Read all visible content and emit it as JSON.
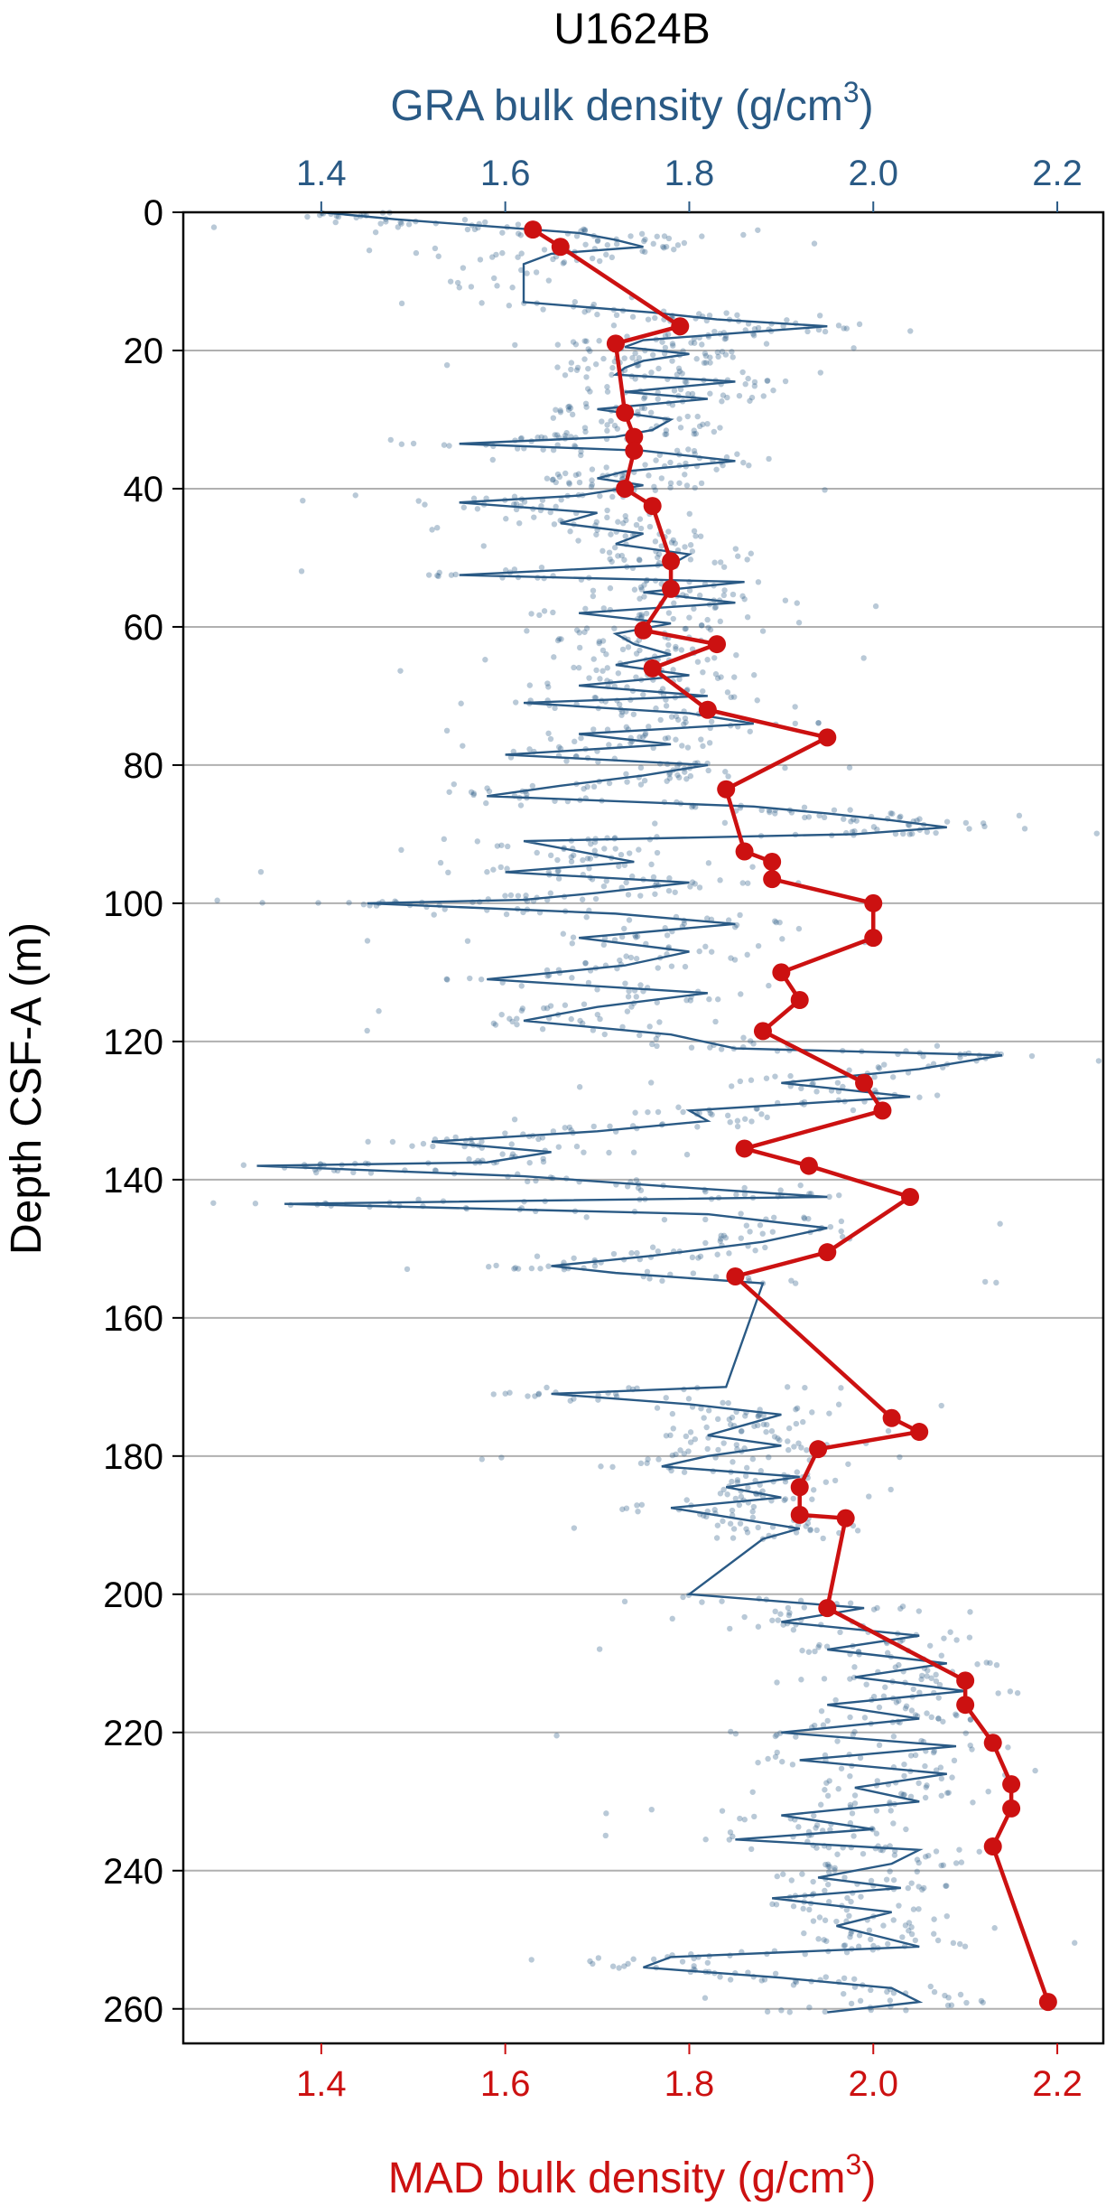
{
  "chart_data": {
    "type": "scatter",
    "title": "U1624B",
    "top_axis": {
      "label": "GRA bulk density (g/cm",
      "label_sup": "3",
      "label_end": ")",
      "range": [
        1.25,
        2.25
      ],
      "ticks": [
        "1.4",
        "1.6",
        "1.8",
        "2.0",
        "2.2"
      ],
      "tick_values": [
        1.4,
        1.6,
        1.8,
        2.0,
        2.2
      ],
      "color": "#2a5a85"
    },
    "bottom_axis": {
      "label": "MAD bulk density (g/cm",
      "label_sup": "3",
      "label_end": ")",
      "range": [
        1.25,
        2.25
      ],
      "ticks": [
        "1.4",
        "1.6",
        "1.8",
        "2.0",
        "2.2"
      ],
      "tick_values": [
        1.4,
        1.6,
        1.8,
        2.0,
        2.2
      ],
      "color": "#cc1111"
    },
    "y_axis": {
      "label": "Depth CSF-A (m)",
      "range": [
        0,
        265
      ],
      "inverted": true,
      "ticks": [
        "0",
        "20",
        "40",
        "60",
        "80",
        "100",
        "120",
        "140",
        "160",
        "180",
        "200",
        "220",
        "240",
        "260"
      ],
      "tick_values": [
        0,
        20,
        40,
        60,
        80,
        100,
        120,
        140,
        160,
        180,
        200,
        220,
        240,
        260
      ],
      "grid": true
    },
    "series": [
      {
        "name": "GRA bulk density",
        "style": "points+line",
        "color": "#2a5a85",
        "points": [
          [
            0.0,
            1.4
          ],
          [
            1.0,
            1.48
          ],
          [
            2.0,
            1.58
          ],
          [
            3.0,
            1.68
          ],
          [
            4.0,
            1.72
          ],
          [
            5.0,
            1.75
          ],
          [
            6.0,
            1.65
          ],
          [
            7.5,
            1.62
          ],
          [
            13.0,
            1.62
          ],
          [
            14.5,
            1.76
          ],
          [
            15.5,
            1.83
          ],
          [
            16.5,
            1.95
          ],
          [
            17.5,
            1.85
          ],
          [
            18.5,
            1.75
          ],
          [
            19.5,
            1.73
          ],
          [
            20.5,
            1.8
          ],
          [
            21.5,
            1.75
          ],
          [
            22.5,
            1.73
          ],
          [
            23.5,
            1.72
          ],
          [
            24.5,
            1.85
          ],
          [
            26.0,
            1.73
          ],
          [
            27.0,
            1.82
          ],
          [
            28.5,
            1.7
          ],
          [
            30.0,
            1.78
          ],
          [
            31.5,
            1.76
          ],
          [
            32.5,
            1.72
          ],
          [
            33.5,
            1.55
          ],
          [
            34.5,
            1.75
          ],
          [
            36.0,
            1.85
          ],
          [
            37.5,
            1.73
          ],
          [
            38.5,
            1.7
          ],
          [
            39.5,
            1.75
          ],
          [
            41.0,
            1.68
          ],
          [
            42.0,
            1.55
          ],
          [
            43.5,
            1.7
          ],
          [
            45.0,
            1.66
          ],
          [
            46.5,
            1.75
          ],
          [
            48.0,
            1.72
          ],
          [
            49.5,
            1.8
          ],
          [
            51.0,
            1.78
          ],
          [
            52.5,
            1.55
          ],
          [
            53.5,
            1.86
          ],
          [
            55.0,
            1.75
          ],
          [
            56.5,
            1.85
          ],
          [
            58.0,
            1.68
          ],
          [
            59.5,
            1.78
          ],
          [
            61.0,
            1.72
          ],
          [
            62.5,
            1.74
          ],
          [
            64.0,
            1.78
          ],
          [
            65.5,
            1.72
          ],
          [
            67.0,
            1.8
          ],
          [
            68.5,
            1.68
          ],
          [
            70.0,
            1.82
          ],
          [
            71.0,
            1.62
          ],
          [
            72.5,
            1.8
          ],
          [
            74.0,
            1.87
          ],
          [
            75.5,
            1.68
          ],
          [
            77.0,
            1.78
          ],
          [
            78.5,
            1.6
          ],
          [
            80.0,
            1.82
          ],
          [
            81.5,
            1.75
          ],
          [
            83.0,
            1.66
          ],
          [
            84.5,
            1.58
          ],
          [
            86.0,
            1.87
          ],
          [
            87.0,
            1.95
          ],
          [
            88.0,
            2.02
          ],
          [
            89.0,
            2.08
          ],
          [
            90.0,
            1.98
          ],
          [
            91.0,
            1.62
          ],
          [
            92.5,
            1.68
          ],
          [
            94.0,
            1.74
          ],
          [
            95.5,
            1.6
          ],
          [
            97.0,
            1.8
          ],
          [
            98.5,
            1.7
          ],
          [
            99.5,
            1.62
          ],
          [
            100.0,
            1.45
          ],
          [
            101.5,
            1.72
          ],
          [
            103.0,
            1.85
          ],
          [
            105.0,
            1.68
          ],
          [
            107.0,
            1.8
          ],
          [
            109.0,
            1.73
          ],
          [
            111.0,
            1.58
          ],
          [
            113.0,
            1.82
          ],
          [
            115.0,
            1.7
          ],
          [
            117.0,
            1.62
          ],
          [
            119.0,
            1.78
          ],
          [
            121.0,
            1.85
          ],
          [
            122.0,
            2.14
          ],
          [
            124.0,
            2.05
          ],
          [
            126.0,
            1.9
          ],
          [
            128.0,
            2.04
          ],
          [
            130.0,
            1.8
          ],
          [
            131.5,
            1.82
          ],
          [
            133.0,
            1.7
          ],
          [
            134.5,
            1.52
          ],
          [
            136.0,
            1.65
          ],
          [
            137.5,
            1.58
          ],
          [
            138.0,
            1.33
          ],
          [
            139.5,
            1.62
          ],
          [
            141.0,
            1.78
          ],
          [
            142.5,
            1.95
          ],
          [
            143.5,
            1.36
          ],
          [
            145.0,
            1.82
          ],
          [
            147.0,
            1.95
          ],
          [
            149.0,
            1.88
          ],
          [
            151.0,
            1.76
          ],
          [
            152.5,
            1.65
          ],
          [
            153.5,
            1.72
          ],
          [
            155.0,
            1.88
          ],
          [
            170.0,
            1.84
          ],
          [
            171.0,
            1.65
          ],
          [
            172.5,
            1.8
          ],
          [
            174.0,
            1.9
          ],
          [
            175.5,
            1.86
          ],
          [
            177.0,
            1.82
          ],
          [
            178.5,
            1.9
          ],
          [
            180.0,
            1.82
          ],
          [
            181.5,
            1.77
          ],
          [
            183.0,
            1.92
          ],
          [
            184.5,
            1.84
          ],
          [
            186.0,
            1.9
          ],
          [
            187.5,
            1.78
          ],
          [
            189.0,
            1.85
          ],
          [
            190.5,
            1.92
          ],
          [
            192.0,
            1.88
          ],
          [
            200.0,
            1.8
          ],
          [
            202.0,
            1.99
          ],
          [
            204.0,
            1.9
          ],
          [
            206.0,
            2.05
          ],
          [
            208.0,
            1.95
          ],
          [
            210.0,
            2.08
          ],
          [
            212.0,
            1.98
          ],
          [
            214.0,
            2.1
          ],
          [
            216.0,
            1.95
          ],
          [
            218.0,
            2.05
          ],
          [
            220.0,
            1.9
          ],
          [
            222.0,
            2.09
          ],
          [
            224.0,
            1.92
          ],
          [
            226.0,
            2.08
          ],
          [
            228.0,
            1.98
          ],
          [
            230.0,
            2.05
          ],
          [
            232.0,
            1.9
          ],
          [
            234.0,
            2.0
          ],
          [
            235.5,
            1.85
          ],
          [
            237.0,
            2.05
          ],
          [
            239.0,
            2.02
          ],
          [
            241.0,
            1.94
          ],
          [
            242.5,
            2.03
          ],
          [
            244.0,
            1.89
          ],
          [
            246.0,
            2.02
          ],
          [
            248.0,
            1.96
          ],
          [
            250.0,
            2.02
          ],
          [
            251.0,
            2.05
          ],
          [
            252.5,
            1.78
          ],
          [
            254.0,
            1.75
          ],
          [
            255.5,
            1.9
          ],
          [
            257.0,
            2.02
          ],
          [
            259.0,
            2.05
          ],
          [
            260.5,
            1.95
          ]
        ]
      },
      {
        "name": "MAD bulk density",
        "style": "markers+line",
        "color": "#cc1111",
        "points": [
          [
            2.5,
            1.63
          ],
          [
            5.0,
            1.66
          ],
          [
            16.5,
            1.79
          ],
          [
            19.0,
            1.72
          ],
          [
            29.0,
            1.73
          ],
          [
            32.5,
            1.74
          ],
          [
            34.5,
            1.74
          ],
          [
            40.0,
            1.73
          ],
          [
            42.5,
            1.76
          ],
          [
            50.5,
            1.78
          ],
          [
            54.5,
            1.78
          ],
          [
            60.5,
            1.75
          ],
          [
            62.5,
            1.83
          ],
          [
            66.0,
            1.76
          ],
          [
            72.0,
            1.82
          ],
          [
            76.0,
            1.95
          ],
          [
            83.5,
            1.84
          ],
          [
            92.5,
            1.86
          ],
          [
            94.0,
            1.89
          ],
          [
            96.5,
            1.89
          ],
          [
            100.0,
            2.0
          ],
          [
            105.0,
            2.0
          ],
          [
            110.0,
            1.9
          ],
          [
            114.0,
            1.92
          ],
          [
            118.5,
            1.88
          ],
          [
            126.0,
            1.99
          ],
          [
            130.0,
            2.01
          ],
          [
            135.5,
            1.86
          ],
          [
            138.0,
            1.93
          ],
          [
            142.5,
            2.04
          ],
          [
            150.5,
            1.95
          ],
          [
            154.0,
            1.85
          ],
          [
            174.5,
            2.02
          ],
          [
            176.5,
            2.05
          ],
          [
            179.0,
            1.94
          ],
          [
            184.5,
            1.92
          ],
          [
            188.5,
            1.92
          ],
          [
            189.0,
            1.97
          ],
          [
            202.0,
            1.95
          ],
          [
            212.5,
            2.1
          ],
          [
            216.0,
            2.1
          ],
          [
            221.5,
            2.13
          ],
          [
            227.5,
            2.15
          ],
          [
            231.0,
            2.15
          ],
          [
            236.5,
            2.13
          ],
          [
            259.0,
            2.19
          ]
        ]
      }
    ]
  }
}
